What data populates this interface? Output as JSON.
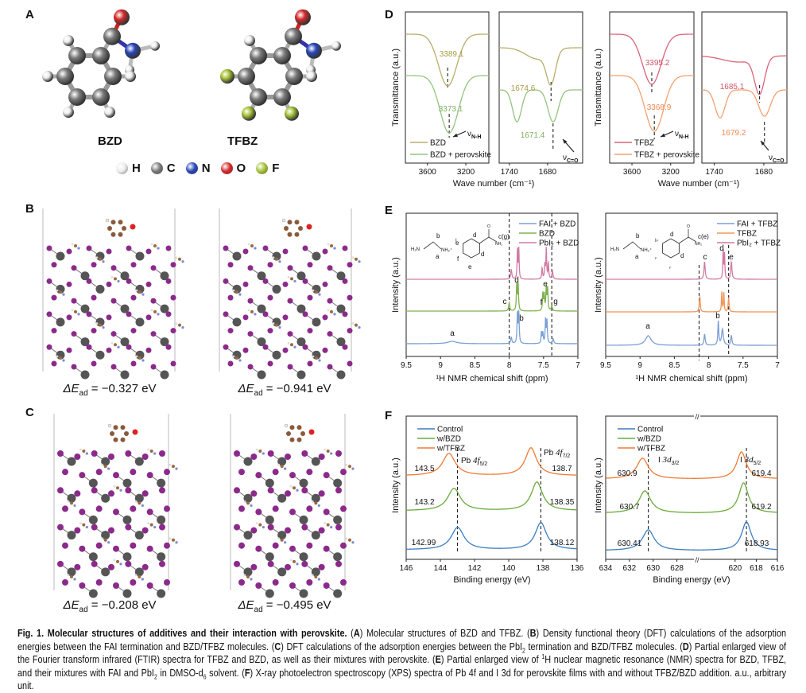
{
  "panel_labels": {
    "A": "A",
    "B": "B",
    "C": "C",
    "D": "D",
    "E": "E",
    "F": "F"
  },
  "panel_A": {
    "molecules": [
      "BZD",
      "TFBZ"
    ],
    "atom_legend": [
      {
        "symbol": "H",
        "color": "#eeeeee"
      },
      {
        "symbol": "C",
        "color": "#7a7a7a"
      },
      {
        "symbol": "N",
        "color": "#2846b8"
      },
      {
        "symbol": "O",
        "color": "#d62a2a"
      },
      {
        "symbol": "F",
        "color": "#a8c43a"
      }
    ]
  },
  "panel_B": {
    "energies": [
      {
        "symbol": "ΔE",
        "sub": "ad",
        "value": " = −0.327 eV"
      },
      {
        "symbol": "ΔE",
        "sub": "ad",
        "value": " = −0.941 eV"
      }
    ]
  },
  "panel_C": {
    "energies": [
      {
        "symbol": "ΔE",
        "sub": "ad",
        "value": " = −0.208 eV"
      },
      {
        "symbol": "ΔE",
        "sub": "ad",
        "value": " = −0.495 eV"
      }
    ]
  },
  "panel_E_insets": {
    "left": {
      "h2n": "H₂N",
      "nh2": "NH₂⁺",
      "iodide": "I",
      "b": "b",
      "a": "a",
      "ring": [
        "d",
        "e",
        "f",
        "e",
        "d"
      ],
      "o": "O",
      "amide": "NH₂",
      "c": "c(g)"
    },
    "right": {
      "h2n": "H₂N",
      "nh2": "NH₂⁺",
      "iodide": "I",
      "b": "b",
      "a": "a",
      "ring": [
        "d",
        "d"
      ],
      "f": "F",
      "o": "O",
      "amide": "NH₂",
      "c": "c(e)"
    }
  },
  "chart_data": [
    {
      "id": "D1",
      "panel": "D",
      "type": "line",
      "ylabel": "Transmittance (a.u.)",
      "xlabel": "Wave number (cm⁻¹)",
      "xlim": [
        3830,
        2960
      ],
      "xticks": [
        3600,
        3200
      ],
      "series": [
        {
          "name": "BZD",
          "color": "#b8ad6a",
          "peaks": [
            [
              3389.1,
              65,
              95
            ]
          ]
        },
        {
          "name": "BZD + perovskite",
          "color": "#93c47d",
          "peaks": [
            [
              3373.1,
              72,
              95
            ]
          ]
        }
      ],
      "dashed": [
        3389.1,
        3373.1
      ],
      "annotations": [
        {
          "text": "3389.1",
          "color": "#a89a4a"
        },
        {
          "text": "3373.1",
          "color": "#7fb060"
        },
        {
          "text": "ν",
          "sub": "N-H",
          "color": "#111"
        }
      ],
      "legend": "bottom-left"
    },
    {
      "id": "D2",
      "panel": "D",
      "type": "line",
      "xlim": [
        1756,
        1625
      ],
      "xticks": [
        1740,
        1680
      ],
      "series": [
        {
          "color": "#b8ad6a",
          "peaks": [
            [
              1674.6,
              40,
              7
            ],
            [
              1696,
              14,
              18
            ]
          ]
        },
        {
          "color": "#93c47d",
          "peaks": [
            [
              1728,
              40,
              7
            ],
            [
              1671.4,
              40,
              8
            ]
          ]
        }
      ],
      "dashed": [
        1674.6,
        1671.4
      ],
      "annotations": [
        {
          "text": "1674.6",
          "color": "#a89a4a"
        },
        {
          "text": "1671.4",
          "color": "#7fb060"
        },
        {
          "text": "ν",
          "sub": "C=O",
          "color": "#111"
        }
      ]
    },
    {
      "id": "D3",
      "panel": "D",
      "type": "line",
      "ylabel": "Transmittance (a.u.)",
      "xlabel": "Wave number (cm⁻¹)",
      "xlim": [
        3830,
        2960
      ],
      "xticks": [
        3600,
        3200
      ],
      "series": [
        {
          "name": "TFBZ",
          "color": "#d9647a",
          "peaks": [
            [
              3395.2,
              63,
              95
            ]
          ]
        },
        {
          "name": "TFBZ + perovskite",
          "color": "#f4a070",
          "peaks": [
            [
              3368.9,
              70,
              95
            ]
          ]
        }
      ],
      "dashed": [
        3395.2,
        3368.9
      ],
      "annotations": [
        {
          "text": "3395.2",
          "color": "#d2546a"
        },
        {
          "text": "3368.9",
          "color": "#f08a50"
        },
        {
          "text": "ν",
          "sub": "N-H",
          "color": "#111"
        }
      ],
      "legend": "bottom-left"
    },
    {
      "id": "D4",
      "panel": "D",
      "type": "line",
      "xlim": [
        1755,
        1652
      ],
      "xticks": [
        1740,
        1680
      ],
      "series": [
        {
          "color": "#d9647a",
          "peaks": [
            [
              1685.1,
              45,
              6
            ],
            [
              1710,
              8,
              20
            ]
          ]
        },
        {
          "color": "#f4a070",
          "peaks": [
            [
              1733,
              35,
              6
            ],
            [
              1679.2,
              33,
              7
            ]
          ]
        }
      ],
      "dashed": [
        1685.1,
        1679.2
      ],
      "annotations": [
        {
          "text": "1685.1",
          "color": "#d2546a"
        },
        {
          "text": "1679.2",
          "color": "#f08a50"
        },
        {
          "text": "ν",
          "sub": "C=O",
          "color": "#111"
        }
      ]
    },
    {
      "id": "E1",
      "panel": "E",
      "type": "line",
      "ylabel": "Intensity (a.u.)",
      "xlabel": "¹H NMR chemical shift (ppm)",
      "xlim": [
        9.5,
        7.0
      ],
      "xticks": [
        9.5,
        9.0,
        8.5,
        8.0,
        7.5,
        7.0
      ],
      "series": [
        {
          "name": "FAI + BZD",
          "color": "#7b9fd4",
          "peaks": [
            [
              8.83,
              3,
              0.08
            ],
            [
              7.97,
              8,
              0.01
            ],
            [
              7.88,
              38,
              0.007
            ],
            [
              7.86,
              38,
              0.007
            ],
            [
              7.53,
              14,
              0.007
            ],
            [
              7.51,
              13,
              0.007
            ],
            [
              7.47,
              30,
              0.007
            ],
            [
              7.45,
              28,
              0.007
            ],
            [
              7.36,
              6,
              0.01
            ]
          ]
        },
        {
          "name": "BZD",
          "color": "#7fb24f",
          "peaks": [
            [
              8.0,
              10,
              0.01
            ],
            [
              7.89,
              33,
              0.007
            ],
            [
              7.87,
              33,
              0.007
            ],
            [
              7.51,
              22,
              0.007
            ],
            [
              7.49,
              20,
              0.007
            ],
            [
              7.46,
              30,
              0.007
            ],
            [
              7.44,
              28,
              0.007
            ],
            [
              7.38,
              6,
              0.01
            ]
          ]
        },
        {
          "name": "PbI₂ + BZD",
          "color": "#d07aa5",
          "peaks": [
            [
              7.97,
              12,
              0.01
            ],
            [
              7.88,
              38,
              0.006
            ],
            [
              7.86,
              38,
              0.006
            ],
            [
              7.52,
              14,
              0.007
            ],
            [
              7.48,
              18,
              0.007
            ],
            [
              7.46,
              38,
              0.006
            ],
            [
              7.43,
              20,
              0.007
            ],
            [
              7.37,
              10,
              0.01
            ]
          ]
        }
      ],
      "dashed": [
        8.0,
        7.38
      ],
      "annotations": [
        {
          "text": "a"
        },
        {
          "text": "b"
        },
        {
          "text": "c"
        },
        {
          "text": "d"
        },
        {
          "text": "e"
        },
        {
          "text": "f"
        },
        {
          "text": "g"
        }
      ],
      "legend": "top-right"
    },
    {
      "id": "E2",
      "panel": "E",
      "type": "line",
      "ylabel": "Intensity (a.u.)",
      "xlabel": "¹H NMR chemical shift (ppm)",
      "xlim": [
        9.5,
        7.0
      ],
      "xticks": [
        9.5,
        9.0,
        8.5,
        8.0,
        7.5,
        7.0
      ],
      "series": [
        {
          "name": "FAI + TFBZ",
          "color": "#7b9fd4",
          "peaks": [
            [
              8.88,
              12,
              0.05
            ],
            [
              8.06,
              14,
              0.01
            ],
            [
              7.86,
              30,
              0.008
            ],
            [
              7.8,
              20,
              0.015
            ],
            [
              7.67,
              12,
              0.01
            ]
          ]
        },
        {
          "name": "TFBZ",
          "color": "#f0955a",
          "peaks": [
            [
              8.13,
              20,
              0.008
            ],
            [
              7.81,
              25,
              0.006
            ],
            [
              7.78,
              25,
              0.006
            ],
            [
              7.71,
              18,
              0.008
            ]
          ]
        },
        {
          "name": "PbI₂ + TFBZ",
          "color": "#d07aa5",
          "peaks": [
            [
              8.06,
              22,
              0.01
            ],
            [
              7.79,
              36,
              0.006
            ],
            [
              7.77,
              32,
              0.006
            ],
            [
              7.67,
              22,
              0.01
            ]
          ]
        }
      ],
      "dashed": [
        8.14,
        7.71
      ],
      "annotations": [
        {
          "text": "a"
        },
        {
          "text": "b"
        },
        {
          "text": "c"
        },
        {
          "text": "d"
        },
        {
          "text": "e"
        }
      ],
      "legend": "top-right"
    },
    {
      "id": "F1",
      "panel": "F",
      "type": "line",
      "ylabel": "Intensity (a.u.)",
      "xlabel": "Binding energy (eV)",
      "xlim": [
        146,
        136
      ],
      "xticks": [
        146,
        144,
        142,
        140,
        138,
        136
      ],
      "series": [
        {
          "name": "Control",
          "color": "#3a7fc1",
          "peaks": [
            [
              142.99,
              28,
              0.45
            ],
            [
              138.12,
              34,
              0.4
            ]
          ]
        },
        {
          "name": "w/BZD",
          "color": "#6aaa3a",
          "peaks": [
            [
              143.2,
              28,
              0.45
            ],
            [
              138.35,
              36,
              0.4
            ]
          ]
        },
        {
          "name": "w/TFBZ",
          "color": "#f07a35",
          "peaks": [
            [
              143.5,
              28,
              0.45
            ],
            [
              138.7,
              35,
              0.4
            ]
          ]
        }
      ],
      "dashed": [
        143.0,
        138.12
      ],
      "annotations": [
        {
          "text": "143.5"
        },
        {
          "text": "143.2"
        },
        {
          "text": "142.99"
        },
        {
          "text": "138.7"
        },
        {
          "text": "138.35"
        },
        {
          "text": "138.12"
        },
        {
          "text": "Pb ",
          "ital": "4f",
          "sub": "5/2"
        },
        {
          "text": "Pb ",
          "ital": "4f",
          "sub": "7/2"
        }
      ],
      "legend": "top-left"
    },
    {
      "id": "F2",
      "panel": "F",
      "type": "line",
      "ylabel": "Intensity (a.u.)",
      "xlabel": "Binding energy (eV)",
      "xlim": [
        634,
        616
      ],
      "axis_break": [
        626.3,
        623.6
      ],
      "xticks": [
        634,
        632,
        630,
        628,
        620,
        618,
        616
      ],
      "series": [
        {
          "name": "Control",
          "color": "#3a7fc1",
          "peaks": [
            [
              630.41,
              26,
              0.6
            ],
            [
              618.93,
              36,
              0.55
            ]
          ]
        },
        {
          "name": "w/BZD",
          "color": "#6aaa3a",
          "peaks": [
            [
              630.7,
              28,
              0.6
            ],
            [
              619.2,
              38,
              0.55
            ]
          ]
        },
        {
          "name": "w/TFBZ",
          "color": "#f07a35",
          "peaks": [
            [
              630.9,
              26,
              0.6
            ],
            [
              619.4,
              34,
              0.55
            ]
          ]
        }
      ],
      "dashed": [
        630.41,
        618.93
      ],
      "annotations": [
        {
          "text": "630.9"
        },
        {
          "text": "630.7"
        },
        {
          "text": "630.41"
        },
        {
          "text": "619.4"
        },
        {
          "text": "619.2"
        },
        {
          "text": "618.93"
        },
        {
          "text": "I ",
          "ital": "3d",
          "sub": "3/2"
        },
        {
          "text": "I ",
          "ital": "3d",
          "sub": "5/2"
        }
      ],
      "legend": "top-left"
    }
  ],
  "caption": [
    [
      "Fig. 1. Molecular structures of additives and their interaction with perovskite.",
      "b"
    ],
    [
      " (",
      ""
    ],
    [
      "A",
      "b"
    ],
    [
      ") Molecular structures of BZD and TFBZ. (",
      ""
    ],
    [
      "B",
      "b"
    ],
    [
      ") Density functional theory (DFT) calculations of the adsorption energies between the FAI termination and BZD/TFBZ molecules. (",
      ""
    ],
    [
      "C",
      "b"
    ],
    [
      ") DFT calculations of the adsorption energies between the PbI",
      ""
    ],
    [
      "2",
      "sub"
    ],
    [
      " termination and BZD/TFBZ molecules. (",
      ""
    ],
    [
      "D",
      "b"
    ],
    [
      ") Partial enlarged view of the Fourier transform infrared (FTIR) spectra for TFBZ and BZD, as well as their mixtures with perovskite. (",
      ""
    ],
    [
      "E",
      "b"
    ],
    [
      ") Partial enlarged view of ",
      ""
    ],
    [
      "1",
      "sup"
    ],
    [
      "H nuclear magnetic resonance (NMR) spectra for BZD, TFBZ, and their mixtures with FAI and PbI",
      ""
    ],
    [
      "2",
      "sub"
    ],
    [
      " in DMSO-d",
      ""
    ],
    [
      "6",
      "sub"
    ],
    [
      " solvent. (",
      ""
    ],
    [
      "F",
      "b"
    ],
    [
      ") X-ray photoelectron spectroscopy (XPS) spectra of Pb 4f and I 3d for perovskite films with and without TFBZ/BZD addition. a.u., arbitrary unit.",
      ""
    ]
  ]
}
